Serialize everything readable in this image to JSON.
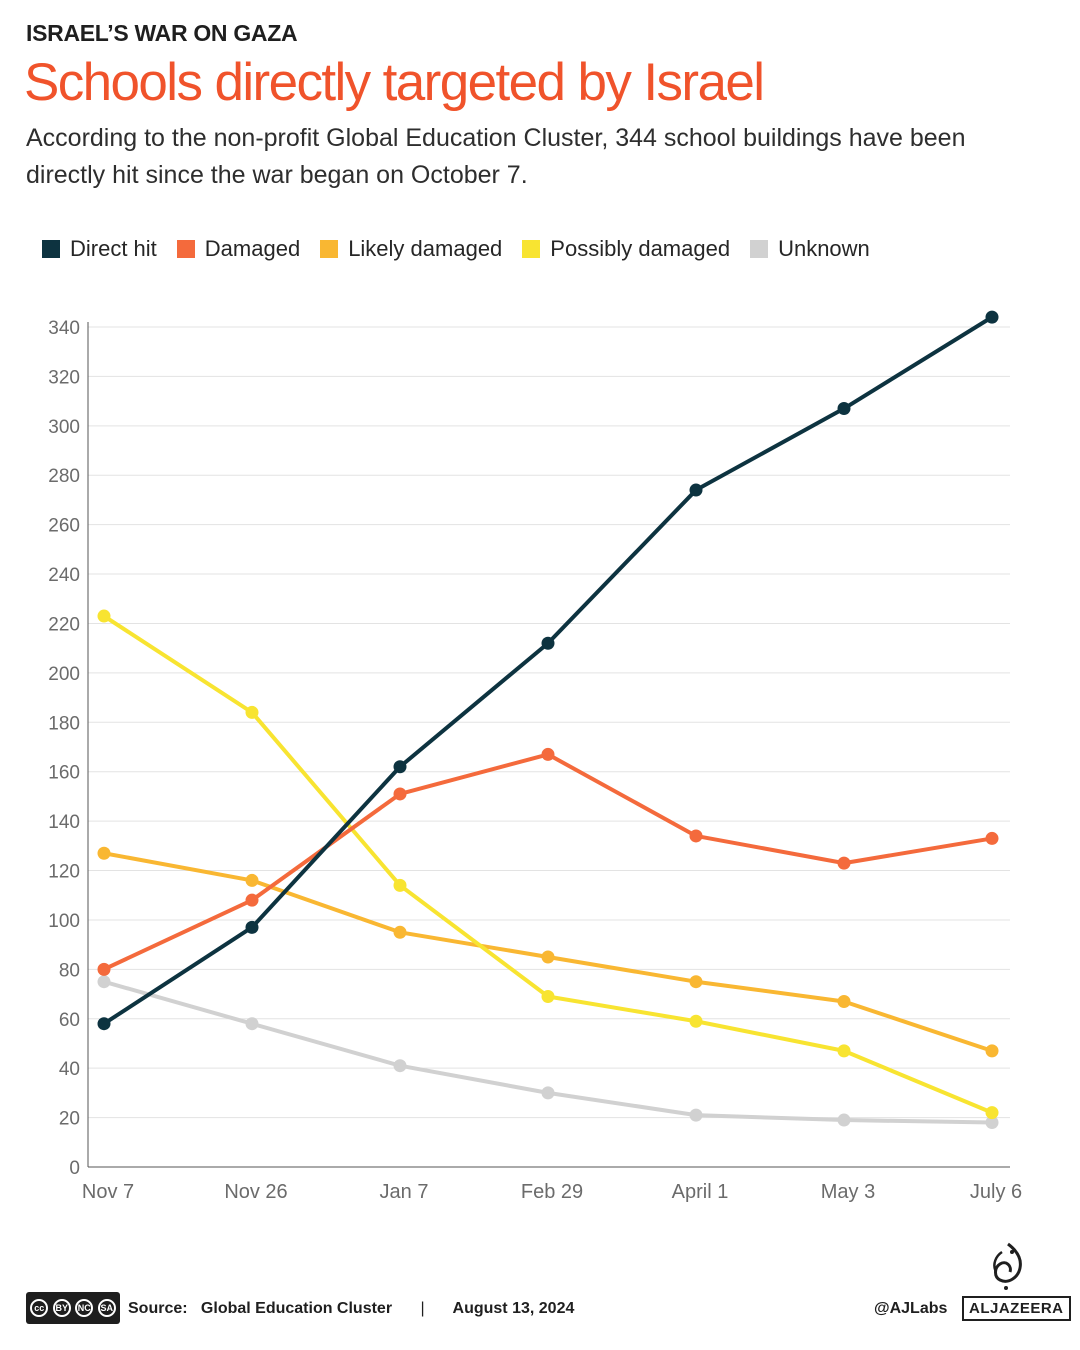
{
  "header": {
    "kicker": "ISRAEL’S WAR ON GAZA",
    "title": "Schools directly targeted by Israel",
    "subtitle": "According to the non-profit Global Education Cluster, 344 school buildings have been directly hit since the war began on October 7."
  },
  "legend": [
    {
      "label": "Direct hit",
      "color": "#0d3340"
    },
    {
      "label": "Damaged",
      "color": "#f46a3c"
    },
    {
      "label": "Likely damaged",
      "color": "#f9b732"
    },
    {
      "label": "Possibly damaged",
      "color": "#f8e431"
    },
    {
      "label": "Unknown",
      "color": "#d1d1d1"
    }
  ],
  "chart_data": {
    "type": "line",
    "title": "Schools directly targeted by Israel",
    "xlabel": "",
    "ylabel": "",
    "categories": [
      "Nov 7",
      "Nov 26",
      "Jan 7",
      "Feb 29",
      "April 1",
      "May 3",
      "July 6"
    ],
    "ylim": [
      0,
      340
    ],
    "yticks": [
      0,
      20,
      40,
      60,
      80,
      100,
      120,
      140,
      160,
      180,
      200,
      220,
      240,
      260,
      280,
      300,
      320,
      340
    ],
    "grid": true,
    "series": [
      {
        "name": "Unknown",
        "color": "#d1d1d1",
        "values": [
          75,
          58,
          41,
          30,
          21,
          19,
          18
        ]
      },
      {
        "name": "Likely damaged",
        "color": "#f9b732",
        "values": [
          127,
          116,
          95,
          85,
          75,
          67,
          47
        ]
      },
      {
        "name": "Possibly damaged",
        "color": "#f8e431",
        "values": [
          223,
          184,
          114,
          69,
          59,
          47,
          22
        ]
      },
      {
        "name": "Damaged",
        "color": "#f46a3c",
        "values": [
          80,
          108,
          151,
          167,
          134,
          123,
          133
        ]
      },
      {
        "name": "Direct hit",
        "color": "#0d3340",
        "values": [
          58,
          97,
          162,
          212,
          274,
          307,
          344
        ]
      }
    ]
  },
  "footer": {
    "cc_labels": [
      "cc",
      "BY",
      "NC",
      "SA"
    ],
    "source_label": "Source:",
    "source_name": "Global Education Cluster",
    "separator": "|",
    "date": "August 13, 2024",
    "handle": "@AJLabs",
    "logo_text": "ALJAZEERA"
  }
}
